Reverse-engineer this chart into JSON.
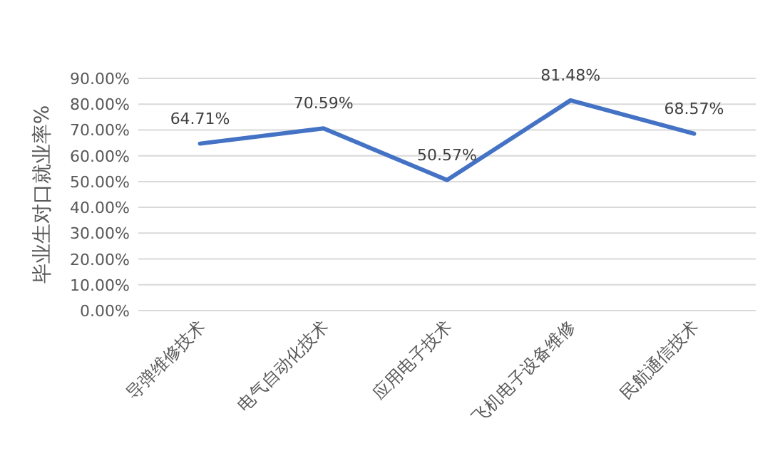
{
  "chart_data": {
    "type": "line",
    "ylabel": "毕业生对口就业率%",
    "categories": [
      "导弹维修技术",
      "电气自动化技术",
      "应用电子技术",
      "飞机电子设备维修",
      "民航通信技术"
    ],
    "series": [
      {
        "color": "#4472c4",
        "values": [
          64.71,
          70.59,
          50.57,
          81.48,
          68.57
        ],
        "value_labels": [
          "64.71%",
          "70.59%",
          "50.57%",
          "81.48%",
          "68.57%"
        ]
      }
    ],
    "ylim": [
      0,
      90
    ],
    "yticks": [
      {
        "value": 0,
        "label": "0.00%"
      },
      {
        "value": 10,
        "label": "10.00%"
      },
      {
        "value": 20,
        "label": "20.00%"
      },
      {
        "value": 30,
        "label": "30.00%"
      },
      {
        "value": 40,
        "label": "40.00%"
      },
      {
        "value": 50,
        "label": "50.00%"
      },
      {
        "value": 60,
        "label": "60.00%"
      },
      {
        "value": 70,
        "label": "70.00%"
      },
      {
        "value": 80,
        "label": "80.00%"
      },
      {
        "value": 90,
        "label": "90.00%"
      }
    ],
    "grid": "y",
    "marker": "none",
    "line_style": "solid"
  }
}
